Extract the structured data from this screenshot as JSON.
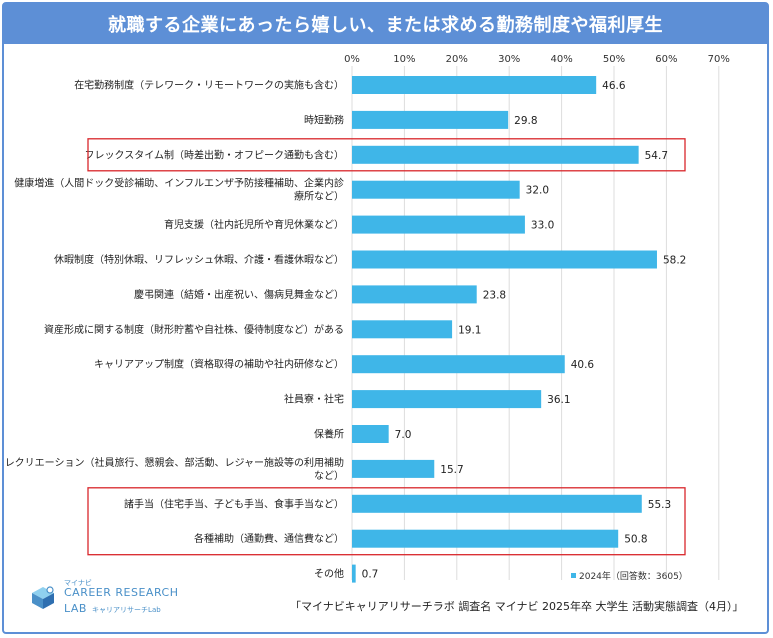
{
  "header": {
    "title": "就職する企業にあったら嬉しい、または求める勤務制度や福利厚生"
  },
  "chart_data": {
    "type": "bar",
    "orientation": "horizontal",
    "xlim": [
      0,
      70
    ],
    "xticks": [
      "0%",
      "10%",
      "20%",
      "30%",
      "40%",
      "50%",
      "60%",
      "70%"
    ],
    "grid": true,
    "bar_color": "#3fb6e8",
    "highlight_color": "#d9262b",
    "categories": [
      [
        "在宅勤務制度（テレワーク・リモートワークの実施も含む）"
      ],
      [
        "時短勤務"
      ],
      [
        "フレックスタイム制（時差出勤・オフピーク通勤も含む）"
      ],
      [
        "健康増進（人間ドック受診補助、インフルエンザ予防接種補助、企業内診",
        "療所など）"
      ],
      [
        "育児支援（社内託児所や育児休業など）"
      ],
      [
        "休暇制度（特別休暇、リフレッシュ休暇、介護・看護休暇など）"
      ],
      [
        "慶弔関連（結婚・出産祝い、傷病見舞金など）"
      ],
      [
        "資産形成に関する制度（財形貯蓄や自社株、優待制度など）がある"
      ],
      [
        "キャリアアップ制度（資格取得の補助や社内研修など）"
      ],
      [
        "社員寮・社宅"
      ],
      [
        "保養所"
      ],
      [
        "レクリエーション（社員旅行、懇親会、部活動、レジャー施設等の利用補助",
        "など）"
      ],
      [
        "諸手当（住宅手当、子ども手当、食事手当など）"
      ],
      [
        "各種補助（通勤費、通信費など）"
      ],
      [
        "その他"
      ]
    ],
    "series": [
      {
        "name": "2024年（回答数：3605）",
        "values": [
          46.6,
          29.8,
          54.7,
          32.0,
          33.0,
          58.2,
          23.8,
          19.1,
          40.6,
          36.1,
          7.0,
          15.7,
          55.3,
          50.8,
          0.7
        ]
      }
    ],
    "value_labels": [
      "46.6",
      "29.8",
      "54.7",
      "32.0",
      "33.0",
      "58.2",
      "23.8",
      "19.1",
      "40.6",
      "36.1",
      "7.0",
      "15.7",
      "55.3",
      "50.8",
      "0.7"
    ],
    "highlighted": [
      [
        2
      ],
      [
        12,
        13
      ]
    ],
    "legend": {
      "label": "2024年（回答数：3605）",
      "position": "bottom-right"
    }
  },
  "logo": {
    "small": "マイナビ",
    "main1": "CAREER RESEARCH",
    "main2": "LAB",
    "sub": "キャリアリサーチLab"
  },
  "source": "「マイナビキャリアリサーチラボ 調査名 マイナビ 2025年卒 大学生 活動実態調査（4月）」"
}
